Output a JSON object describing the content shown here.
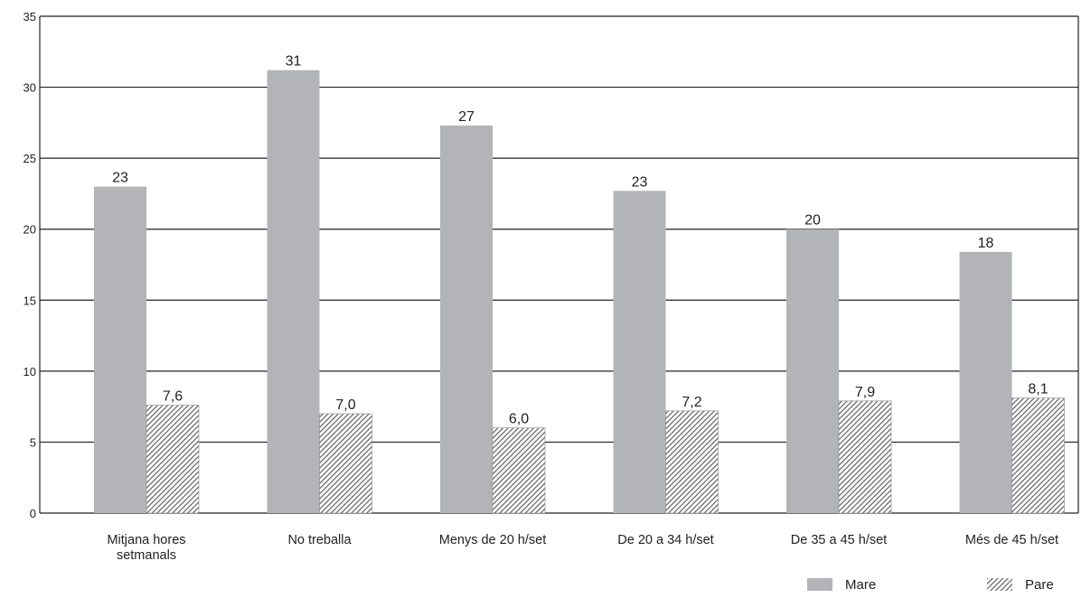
{
  "chart_data": {
    "type": "bar",
    "title": "",
    "xlabel": "",
    "ylabel": "",
    "ylim": [
      0,
      35
    ],
    "yticks": [
      0,
      5,
      10,
      15,
      20,
      25,
      30,
      35
    ],
    "grid": true,
    "legend_position": "bottom-right",
    "categories": [
      [
        "Mitjana hores",
        "setmanals"
      ],
      [
        "No treballa"
      ],
      [
        "Menys de 20 h/set"
      ],
      [
        "De 20 a 34 h/set"
      ],
      [
        "De 35 a 45 h/set"
      ],
      [
        "Més de 45 h/set"
      ]
    ],
    "series": [
      {
        "name": "Mare",
        "values": [
          23.0,
          31.2,
          27.3,
          22.7,
          20.0,
          18.4
        ],
        "labels": [
          "23",
          "31",
          "27",
          "23",
          "20",
          "18"
        ],
        "color": "#b3b4b8",
        "pattern": "solid"
      },
      {
        "name": "Pare",
        "values": [
          7.6,
          7.0,
          6.0,
          7.2,
          7.9,
          8.1
        ],
        "labels": [
          "7,6",
          "7,0",
          "6,0",
          "7,2",
          "7,9",
          "8,1"
        ],
        "color": "#555555",
        "pattern": "hatched"
      }
    ]
  }
}
